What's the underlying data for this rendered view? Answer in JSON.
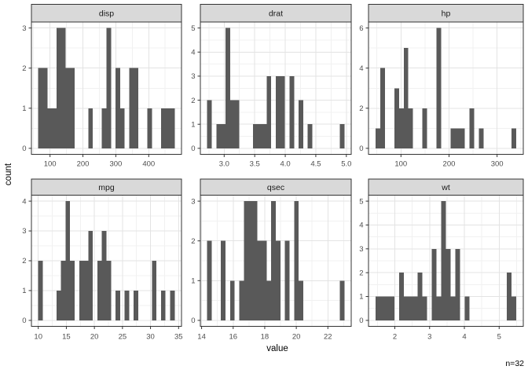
{
  "figure": {
    "y_axis_title": "count",
    "x_axis_title": "value",
    "annotation_n": "n=32",
    "colors": {
      "background": "#FFFFFF",
      "bar_fill": "#595959",
      "strip_background": "#D9D9D9",
      "strip_text": "#1A1A1A",
      "panel_border": "#333333",
      "grid_major": "#E3E3E3",
      "grid_minor": "#F1F1F1",
      "tick_mark": "#333333",
      "tick_text": "#4D4D4D"
    }
  },
  "chart_data": [
    {
      "type": "bar",
      "subtype": "histogram",
      "facet_label": "disp",
      "bin_start": 64.187931,
      "bin_width": 13.8241379,
      "counts": [
        2,
        2,
        1,
        1,
        3,
        3,
        2,
        2,
        0,
        0,
        0,
        1,
        0,
        0,
        1,
        3,
        0,
        2,
        1,
        0,
        2,
        2,
        0,
        0,
        1,
        0,
        0,
        1,
        1,
        1
      ],
      "x_domain": [
        43.4517241,
        499.6482759
      ],
      "x_tick_values": [
        100,
        200,
        300,
        400
      ],
      "x_tick_labels": [
        "100",
        "200",
        "300",
        "400"
      ],
      "x_minor": [
        50,
        150,
        250,
        350,
        450
      ],
      "y_max": 3,
      "y_tick_values": [
        0,
        1,
        2,
        3
      ],
      "y_tick_labels": [
        "0",
        "1",
        "2",
        "3"
      ],
      "y_minor": [
        0.5,
        1.5,
        2.5
      ]
    },
    {
      "type": "bar",
      "subtype": "histogram",
      "facet_label": "drat",
      "bin_start": 2.7225862,
      "bin_width": 0.0748276,
      "counts": [
        2,
        0,
        1,
        1,
        5,
        2,
        2,
        0,
        0,
        0,
        1,
        1,
        1,
        3,
        0,
        3,
        3,
        0,
        3,
        0,
        2,
        0,
        1,
        0,
        0,
        0,
        0,
        0,
        0,
        1
      ],
      "x_domain": [
        2.6103448,
        5.0796552
      ],
      "x_tick_values": [
        3.0,
        3.5,
        4.0,
        4.5,
        5.0
      ],
      "x_tick_labels": [
        "3.0",
        "3.5",
        "4.0",
        "4.5",
        "5.0"
      ],
      "x_minor": [
        2.75,
        3.25,
        3.75,
        4.25,
        4.75
      ],
      "y_max": 5,
      "y_tick_values": [
        0,
        1,
        2,
        3,
        4,
        5
      ],
      "y_tick_labels": [
        "0",
        "1",
        "2",
        "3",
        "4",
        "5"
      ],
      "y_minor": [
        0.5,
        1.5,
        2.5,
        3.5,
        4.5
      ]
    },
    {
      "type": "bar",
      "subtype": "histogram",
      "facet_label": "hp",
      "bin_start": 47.1206897,
      "bin_width": 9.7586207,
      "counts": [
        1,
        4,
        0,
        0,
        3,
        2,
        5,
        2,
        0,
        0,
        2,
        0,
        0,
        6,
        0,
        0,
        1,
        1,
        1,
        0,
        2,
        0,
        1,
        0,
        0,
        0,
        0,
        0,
        0,
        1
      ],
      "x_domain": [
        32.4827586,
        354.5172414
      ],
      "x_tick_values": [
        100,
        200,
        300
      ],
      "x_tick_labels": [
        "100",
        "200",
        "300"
      ],
      "x_minor": [
        50,
        150,
        250,
        350
      ],
      "y_max": 6,
      "y_tick_values": [
        0,
        2,
        4,
        6
      ],
      "y_tick_labels": [
        "0",
        "2",
        "4",
        "6"
      ],
      "y_minor": [
        1,
        3,
        5
      ]
    },
    {
      "type": "bar",
      "subtype": "histogram",
      "facet_label": "mpg",
      "bin_start": 9.9948276,
      "bin_width": 0.8103448,
      "counts": [
        2,
        0,
        0,
        0,
        1,
        2,
        4,
        2,
        0,
        2,
        2,
        3,
        0,
        2,
        3,
        2,
        0,
        1,
        0,
        1,
        0,
        1,
        0,
        0,
        0,
        2,
        0,
        1,
        0,
        1
      ],
      "x_domain": [
        8.7793103,
        35.5206897
      ],
      "x_tick_values": [
        10,
        15,
        20,
        25,
        30,
        35
      ],
      "x_tick_labels": [
        "10",
        "15",
        "20",
        "25",
        "30",
        "35"
      ],
      "x_minor": [
        12.5,
        17.5,
        22.5,
        27.5,
        32.5
      ],
      "y_max": 4,
      "y_tick_values": [
        0,
        1,
        2,
        3,
        4
      ],
      "y_tick_labels": [
        "0",
        "1",
        "2",
        "3",
        "4"
      ],
      "y_minor": [
        0.5,
        1.5,
        2.5,
        3.5
      ]
    },
    {
      "type": "bar",
      "subtype": "histogram",
      "facet_label": "qsec",
      "bin_start": 14.3551724,
      "bin_width": 0.2896552,
      "counts": [
        2,
        0,
        0,
        2,
        0,
        1,
        0,
        1,
        3,
        3,
        3,
        2,
        2,
        1,
        3,
        2,
        0,
        2,
        0,
        3,
        1,
        0,
        0,
        0,
        0,
        0,
        0,
        0,
        0,
        1
      ],
      "x_domain": [
        13.9206897,
        23.4793103
      ],
      "x_tick_values": [
        14,
        16,
        18,
        20,
        22
      ],
      "x_tick_labels": [
        "14",
        "16",
        "18",
        "20",
        "22"
      ],
      "x_minor": [
        15,
        17,
        19,
        21,
        23
      ],
      "y_max": 3,
      "y_tick_values": [
        0,
        1,
        2,
        3
      ],
      "y_tick_labels": [
        "0",
        "1",
        "2",
        "3"
      ],
      "y_minor": [
        0.5,
        1.5,
        2.5
      ]
    },
    {
      "type": "bar",
      "subtype": "histogram",
      "facet_label": "wt",
      "bin_start": 1.445569,
      "bin_width": 0.1348621,
      "counts": [
        1,
        1,
        1,
        1,
        0,
        2,
        1,
        1,
        1,
        2,
        1,
        0,
        3,
        1,
        5,
        3,
        1,
        3,
        0,
        1,
        0,
        0,
        0,
        0,
        0,
        0,
        0,
        0,
        2,
        1
      ],
      "x_domain": [
        1.2432759,
        5.6939655
      ],
      "x_tick_values": [
        2,
        3,
        4,
        5
      ],
      "x_tick_labels": [
        "2",
        "3",
        "4",
        "5"
      ],
      "x_minor": [
        1.5,
        2.5,
        3.5,
        4.5,
        5.5
      ],
      "y_max": 5,
      "y_tick_values": [
        0,
        1,
        2,
        3,
        4,
        5
      ],
      "y_tick_labels": [
        "0",
        "1",
        "2",
        "3",
        "4",
        "5"
      ],
      "y_minor": [
        0.5,
        1.5,
        2.5,
        3.5,
        4.5
      ]
    }
  ]
}
